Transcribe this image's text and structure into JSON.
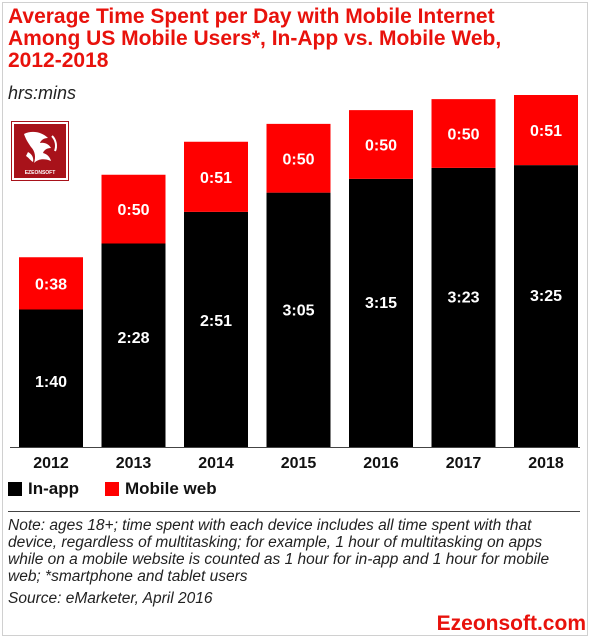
{
  "header": {
    "title_line1": "Average Time Spent per Day with Mobile Internet",
    "title_line2": "Among US Mobile Users*, In-App vs. Mobile Web,",
    "title_line3": "2012-2018",
    "subtitle": "hrs:mins"
  },
  "colors": {
    "in_app": "#000000",
    "mobile_web": "#ff0000",
    "title": "#e8120c"
  },
  "chart_data": {
    "type": "bar",
    "stacked": true,
    "categories": [
      "2012",
      "2013",
      "2014",
      "2015",
      "2016",
      "2017",
      "2018"
    ],
    "unit": "minutes",
    "series": [
      {
        "name": "In-app",
        "values": [
          100,
          148,
          171,
          185,
          195,
          203,
          205
        ],
        "labels": [
          "1:40",
          "2:28",
          "2:51",
          "3:05",
          "3:15",
          "3:23",
          "3:25"
        ]
      },
      {
        "name": "Mobile web",
        "values": [
          38,
          50,
          51,
          50,
          50,
          50,
          51
        ],
        "labels": [
          "0:38",
          "0:50",
          "0:51",
          "0:50",
          "0:50",
          "0:50",
          "0:51"
        ]
      }
    ],
    "ylim": [
      0,
      256
    ],
    "legend_position": "bottom-left",
    "grid": false
  },
  "footer": {
    "note": "Note: ages 18+; time spent with each device includes all time spent with that device, regardless of multitasking; for example, 1 hour of multitasking on apps while on a mobile website is counted as 1 hour for in-app and 1 hour for mobile web; *smartphone and tablet users",
    "source": "Source: eMarketer, April 2016",
    "brand": "Ezeonsoft.com"
  },
  "logo": {
    "icon": "dragon-logo-icon",
    "text": "EZEONSOFT"
  }
}
